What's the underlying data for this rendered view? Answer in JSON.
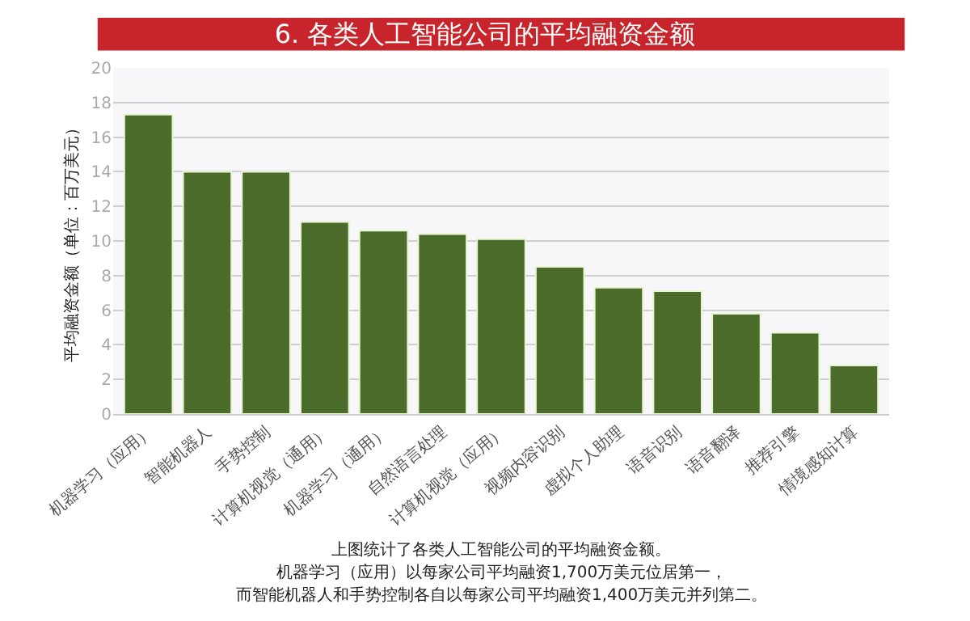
{
  "chart_data": {
    "type": "bar",
    "title": "6. 各类人工智能公司的平均融资金额",
    "ylabel": "平均融资金额（单位：百万美元）",
    "categories": [
      "机器学习（应用）",
      "智能机器人",
      "手势控制",
      "计算机视觉（通用）",
      "机器学习（通用）",
      "自然语言处理",
      "计算机视觉（应用）",
      "视频内容识别",
      "虚拟个人助理",
      "语音识别",
      "语音翻译",
      "推荐引擎",
      "情境感知计算"
    ],
    "values": [
      17.3,
      14.0,
      14.0,
      11.1,
      10.6,
      10.4,
      10.1,
      8.5,
      7.3,
      7.1,
      5.8,
      4.7,
      2.8
    ],
    "color": "#4a6b2a",
    "ylim": [
      0,
      20
    ],
    "yticks": [
      0,
      2,
      4,
      6,
      8,
      10,
      12,
      14,
      16,
      18,
      20
    ],
    "grid": "y",
    "annotations": [
      "上图统计了各类人工智能公司的平均融资金额。",
      "机器学习（应用）以每家公司平均融资1,700万美元位居第一，",
      "而智能机器人和手势控制各自以每家公司平均融资1,400万美元并列第二。"
    ]
  }
}
